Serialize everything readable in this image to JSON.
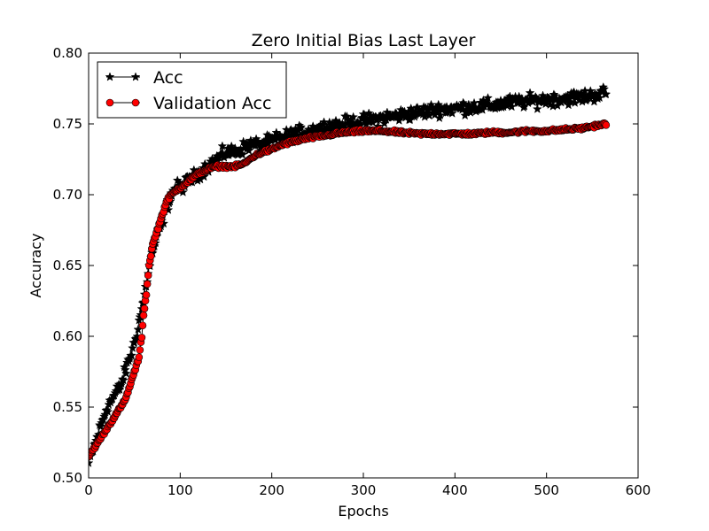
{
  "chart_data": {
    "type": "line",
    "title": "Zero Initial Bias Last Layer",
    "xlabel": "Epochs",
    "ylabel": "Accuracy",
    "xlim": [
      0,
      600
    ],
    "ylim": [
      0.5,
      0.8
    ],
    "xticks": [
      "0",
      "100",
      "200",
      "300",
      "400",
      "500",
      "600"
    ],
    "yticks": [
      "0.50",
      "0.55",
      "0.60",
      "0.65",
      "0.70",
      "0.75",
      "0.80"
    ],
    "grid": false,
    "legend": "top-left",
    "series": [
      {
        "name": "Acc",
        "color": "#000000",
        "marker": "star",
        "anchors": [
          [
            0,
            0.51
          ],
          [
            5,
            0.52
          ],
          [
            10,
            0.53
          ],
          [
            15,
            0.54
          ],
          [
            20,
            0.55
          ],
          [
            25,
            0.555
          ],
          [
            30,
            0.56
          ],
          [
            35,
            0.565
          ],
          [
            40,
            0.575
          ],
          [
            45,
            0.585
          ],
          [
            50,
            0.595
          ],
          [
            55,
            0.61
          ],
          [
            60,
            0.625
          ],
          [
            65,
            0.645
          ],
          [
            70,
            0.66
          ],
          [
            75,
            0.67
          ],
          [
            80,
            0.68
          ],
          [
            85,
            0.69
          ],
          [
            90,
            0.7
          ],
          [
            95,
            0.705
          ],
          [
            100,
            0.705
          ],
          [
            110,
            0.71
          ],
          [
            120,
            0.715
          ],
          [
            130,
            0.72
          ],
          [
            140,
            0.725
          ],
          [
            150,
            0.73
          ],
          [
            160,
            0.73
          ],
          [
            175,
            0.735
          ],
          [
            190,
            0.735
          ],
          [
            200,
            0.738
          ],
          [
            220,
            0.742
          ],
          [
            240,
            0.745
          ],
          [
            260,
            0.748
          ],
          [
            280,
            0.75
          ],
          [
            300,
            0.752
          ],
          [
            320,
            0.754
          ],
          [
            340,
            0.756
          ],
          [
            360,
            0.758
          ],
          [
            380,
            0.76
          ],
          [
            400,
            0.761
          ],
          [
            420,
            0.762
          ],
          [
            440,
            0.763
          ],
          [
            460,
            0.765
          ],
          [
            480,
            0.766
          ],
          [
            500,
            0.767
          ],
          [
            520,
            0.768
          ],
          [
            540,
            0.769
          ],
          [
            565,
            0.772
          ]
        ],
        "noise": 0.007
      },
      {
        "name": "Validation Acc",
        "color": "#ff0000",
        "marker": "circle",
        "anchors": [
          [
            0,
            0.515
          ],
          [
            5,
            0.52
          ],
          [
            10,
            0.525
          ],
          [
            15,
            0.53
          ],
          [
            20,
            0.535
          ],
          [
            25,
            0.54
          ],
          [
            30,
            0.545
          ],
          [
            35,
            0.55
          ],
          [
            40,
            0.555
          ],
          [
            45,
            0.565
          ],
          [
            50,
            0.575
          ],
          [
            55,
            0.585
          ],
          [
            58,
            0.6
          ],
          [
            60,
            0.615
          ],
          [
            63,
            0.63
          ],
          [
            66,
            0.65
          ],
          [
            70,
            0.665
          ],
          [
            75,
            0.675
          ],
          [
            80,
            0.685
          ],
          [
            85,
            0.695
          ],
          [
            90,
            0.7
          ],
          [
            100,
            0.705
          ],
          [
            110,
            0.71
          ],
          [
            120,
            0.715
          ],
          [
            130,
            0.718
          ],
          [
            140,
            0.72
          ],
          [
            150,
            0.72
          ],
          [
            160,
            0.72
          ],
          [
            170,
            0.722
          ],
          [
            180,
            0.727
          ],
          [
            190,
            0.73
          ],
          [
            200,
            0.732
          ],
          [
            210,
            0.735
          ],
          [
            220,
            0.737
          ],
          [
            240,
            0.74
          ],
          [
            260,
            0.742
          ],
          [
            280,
            0.744
          ],
          [
            300,
            0.745
          ],
          [
            320,
            0.745
          ],
          [
            340,
            0.744
          ],
          [
            360,
            0.743
          ],
          [
            380,
            0.743
          ],
          [
            400,
            0.743
          ],
          [
            420,
            0.743
          ],
          [
            440,
            0.744
          ],
          [
            460,
            0.744
          ],
          [
            480,
            0.745
          ],
          [
            500,
            0.745
          ],
          [
            520,
            0.746
          ],
          [
            540,
            0.747
          ],
          [
            555,
            0.749
          ],
          [
            565,
            0.75
          ]
        ],
        "noise": 0.0015
      }
    ]
  }
}
